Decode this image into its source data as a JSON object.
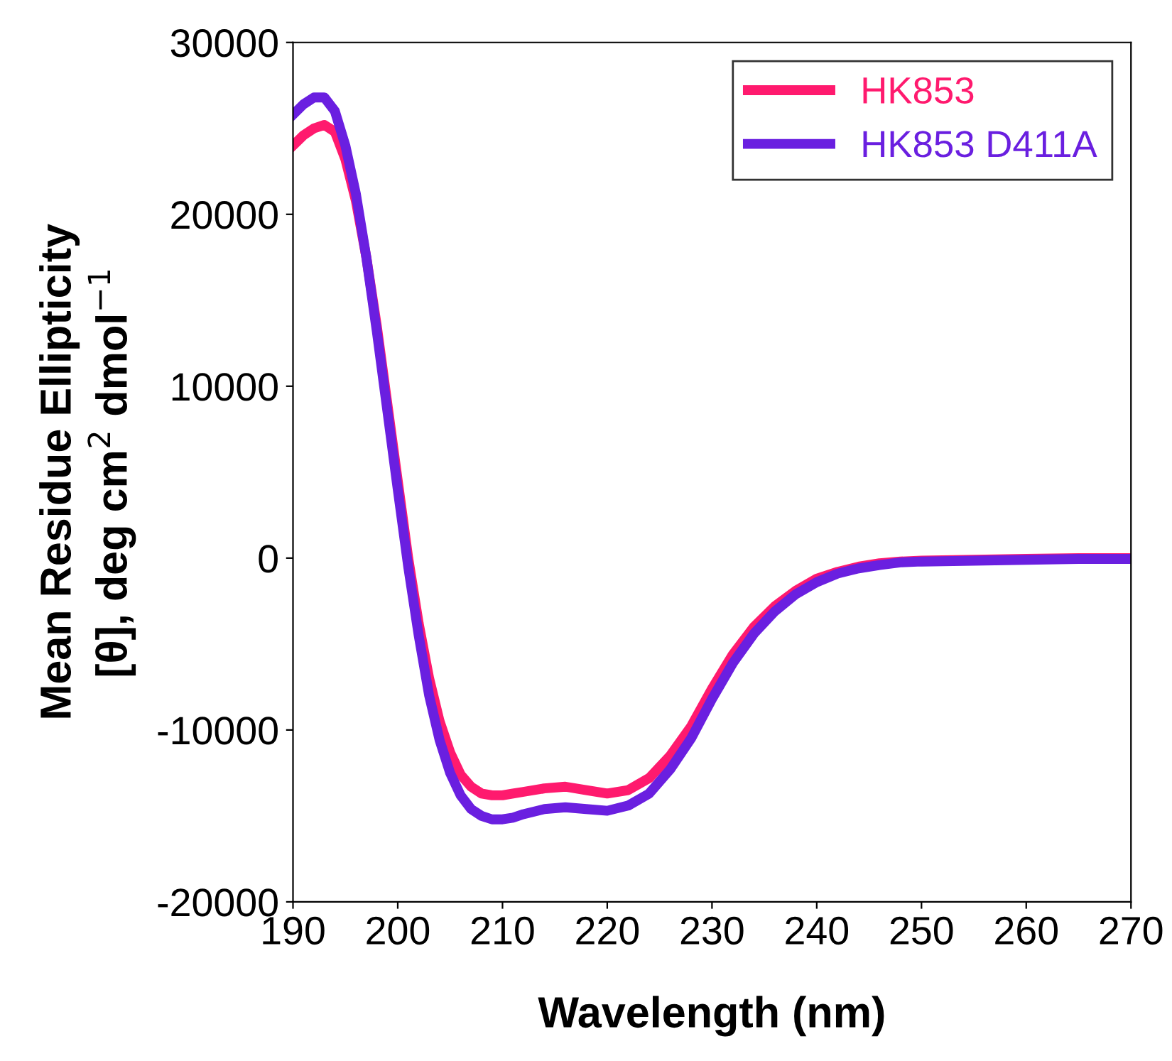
{
  "chart_data": {
    "type": "line",
    "xlabel": "Wavelength (nm)",
    "ylabel": "Mean Residue Ellipticity\n[θ], deg cm$^{2}$ dmol$^{−1}$",
    "xlim": [
      190,
      270
    ],
    "xticks": [
      190,
      200,
      210,
      220,
      230,
      240,
      250,
      260,
      270
    ],
    "ylim": [
      -20000,
      30000
    ],
    "yticks": [
      -20000,
      -10000,
      0,
      10000,
      20000,
      30000
    ],
    "grid": false,
    "legend": "top right",
    "marker": "none",
    "line_style": "solid",
    "series": [
      {
        "name": "HK853",
        "color": "#ff1a6e",
        "x": [
          190,
          191,
          192,
          193,
          194,
          195,
          196,
          197,
          198,
          199,
          200,
          201,
          202,
          203,
          204,
          205,
          206,
          207,
          208,
          209,
          210,
          211,
          212,
          214,
          216,
          218,
          220,
          222,
          224,
          226,
          228,
          230,
          232,
          234,
          236,
          238,
          240,
          242,
          244,
          246,
          248,
          250,
          255,
          260,
          265,
          270
        ],
        "values": [
          24000,
          24600,
          25000,
          25200,
          24800,
          23200,
          20800,
          17500,
          13500,
          9000,
          4500,
          0,
          -3800,
          -7000,
          -9500,
          -11300,
          -12600,
          -13300,
          -13700,
          -13800,
          -13800,
          -13700,
          -13600,
          -13400,
          -13300,
          -13500,
          -13700,
          -13500,
          -12800,
          -11500,
          -9800,
          -7600,
          -5600,
          -4000,
          -2800,
          -1900,
          -1200,
          -800,
          -500,
          -300,
          -200,
          -150,
          -100,
          -50,
          0,
          0
        ]
      },
      {
        "name": "HK853 D411A",
        "color": "#6a1fe0",
        "x": [
          190,
          191,
          192,
          193,
          194,
          195,
          196,
          197,
          198,
          199,
          200,
          201,
          202,
          203,
          204,
          205,
          206,
          207,
          208,
          209,
          210,
          211,
          212,
          214,
          216,
          218,
          220,
          222,
          224,
          226,
          228,
          230,
          232,
          234,
          236,
          238,
          240,
          242,
          244,
          246,
          248,
          250,
          255,
          260,
          265,
          270
        ],
        "values": [
          25800,
          26400,
          26800,
          26800,
          26000,
          24000,
          21200,
          17500,
          13200,
          8600,
          4000,
          -500,
          -4500,
          -8000,
          -10600,
          -12500,
          -13800,
          -14600,
          -15000,
          -15200,
          -15200,
          -15100,
          -14900,
          -14600,
          -14500,
          -14600,
          -14700,
          -14400,
          -13700,
          -12300,
          -10500,
          -8200,
          -6100,
          -4400,
          -3100,
          -2100,
          -1400,
          -900,
          -600,
          -400,
          -250,
          -200,
          -150,
          -100,
          -50,
          -50
        ]
      }
    ]
  }
}
